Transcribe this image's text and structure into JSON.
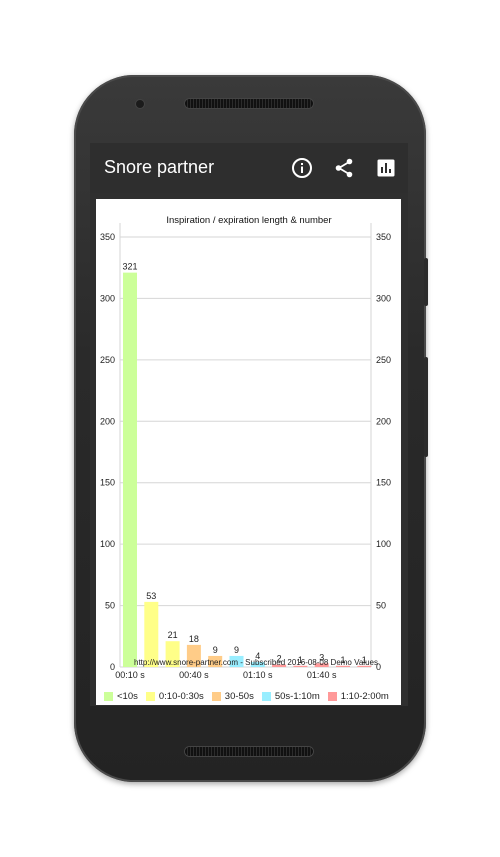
{
  "app": {
    "title": "Snore partner"
  },
  "actions": [
    {
      "icon": "info-icon"
    },
    {
      "icon": "share-icon"
    },
    {
      "icon": "bar-chart-icon"
    }
  ],
  "chart_data": {
    "type": "bar",
    "title": "Inspiration / expiration length & number",
    "ylim": [
      0,
      350
    ],
    "yticks": [
      0,
      50,
      100,
      150,
      200,
      250,
      300,
      350
    ],
    "xticks": [
      "00:10 s",
      "00:40 s",
      "01:10 s",
      "01:40 s"
    ],
    "bars": [
      {
        "value": 321,
        "label": "321",
        "color": "#ccff99"
      },
      {
        "value": 53,
        "label": "53",
        "color": "#ffff88"
      },
      {
        "value": 21,
        "label": "21",
        "color": "#ffff88"
      },
      {
        "value": 18,
        "label": "18",
        "color": "#ffcc88"
      },
      {
        "value": 9,
        "label": "9",
        "color": "#ffcc88"
      },
      {
        "value": 9,
        "label": "9",
        "color": "#99eeff"
      },
      {
        "value": 4,
        "label": "4",
        "color": "#99eeff"
      },
      {
        "value": 2,
        "label": "2",
        "color": "#ff9999"
      },
      {
        "value": 1,
        "label": "1",
        "color": "#ff9999"
      },
      {
        "value": 3,
        "label": "3",
        "color": "#ff9999"
      },
      {
        "value": 1,
        "label": "1",
        "color": "#ff9999"
      },
      {
        "value": 1,
        "label": "1",
        "color": "#ff9999"
      }
    ],
    "legend": [
      {
        "label": "<10s",
        "color": "#ccff99"
      },
      {
        "label": "0:10-0:30s",
        "color": "#ffff88"
      },
      {
        "label": "30-50s",
        "color": "#ffcc88"
      },
      {
        "label": "50s-1:10m",
        "color": "#99eeff"
      },
      {
        "label": "1:10-2:00m",
        "color": "#ff9999"
      }
    ],
    "grid": true,
    "legend_position": "bottom"
  },
  "watermark": "http://www.snore-partner.com - Subscribed 2016-08-08 Demo Values"
}
